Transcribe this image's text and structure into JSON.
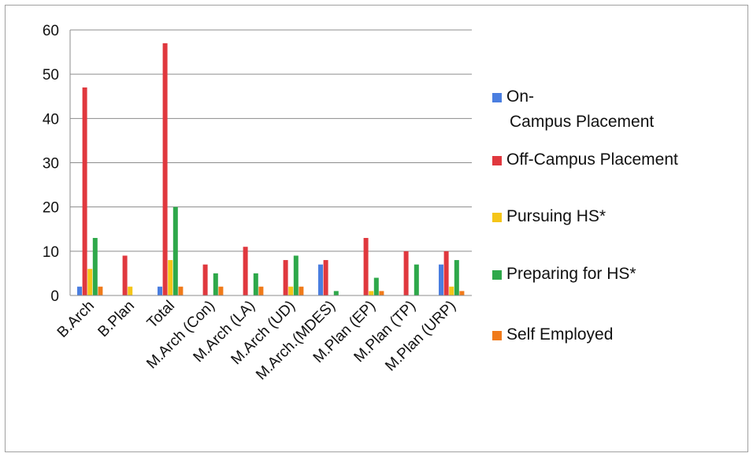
{
  "chart_data": {
    "type": "bar",
    "categories": [
      "B.Arch",
      "B.Plan",
      "Total",
      "M.Arch (Con)",
      "M.Arch (LA)",
      "M.Arch (UD)",
      "M.Arch.(MDES)",
      "M.Plan (EP)",
      "M.Plan (TP)",
      "M.Plan (URP)"
    ],
    "series": [
      {
        "name": "On-Campus Placement",
        "legend_lines": [
          " On-",
          "Campus  Placement"
        ],
        "color": "#4a7ee0",
        "values": [
          2,
          0,
          2,
          0,
          0,
          0,
          7,
          0,
          0,
          7
        ]
      },
      {
        "name": "Off-Campus Placement",
        "legend_lines": [
          "Off-Campus  Placement"
        ],
        "color": "#e0383e",
        "values": [
          47,
          9,
          57,
          7,
          11,
          8,
          8,
          13,
          10,
          10
        ]
      },
      {
        "name": "Pursuing HS*",
        "legend_lines": [
          "Pursuing HS*"
        ],
        "color": "#f5c518",
        "values": [
          6,
          2,
          8,
          0,
          0,
          2,
          0,
          1,
          0,
          2
        ]
      },
      {
        "name": "Preparing for HS*",
        "legend_lines": [
          "Preparing for HS*"
        ],
        "color": "#2ea84a",
        "values": [
          13,
          0,
          20,
          5,
          5,
          9,
          1,
          4,
          7,
          8
        ]
      },
      {
        "name": "Self Employed",
        "legend_lines": [
          "Self Employed"
        ],
        "color": "#f07a1a",
        "values": [
          2,
          0,
          2,
          2,
          2,
          2,
          0,
          1,
          0,
          1
        ]
      }
    ],
    "ylim": [
      0,
      60
    ],
    "yticks": [
      0,
      10,
      20,
      30,
      40,
      50,
      60
    ],
    "grid": true,
    "legend_position": "right"
  }
}
